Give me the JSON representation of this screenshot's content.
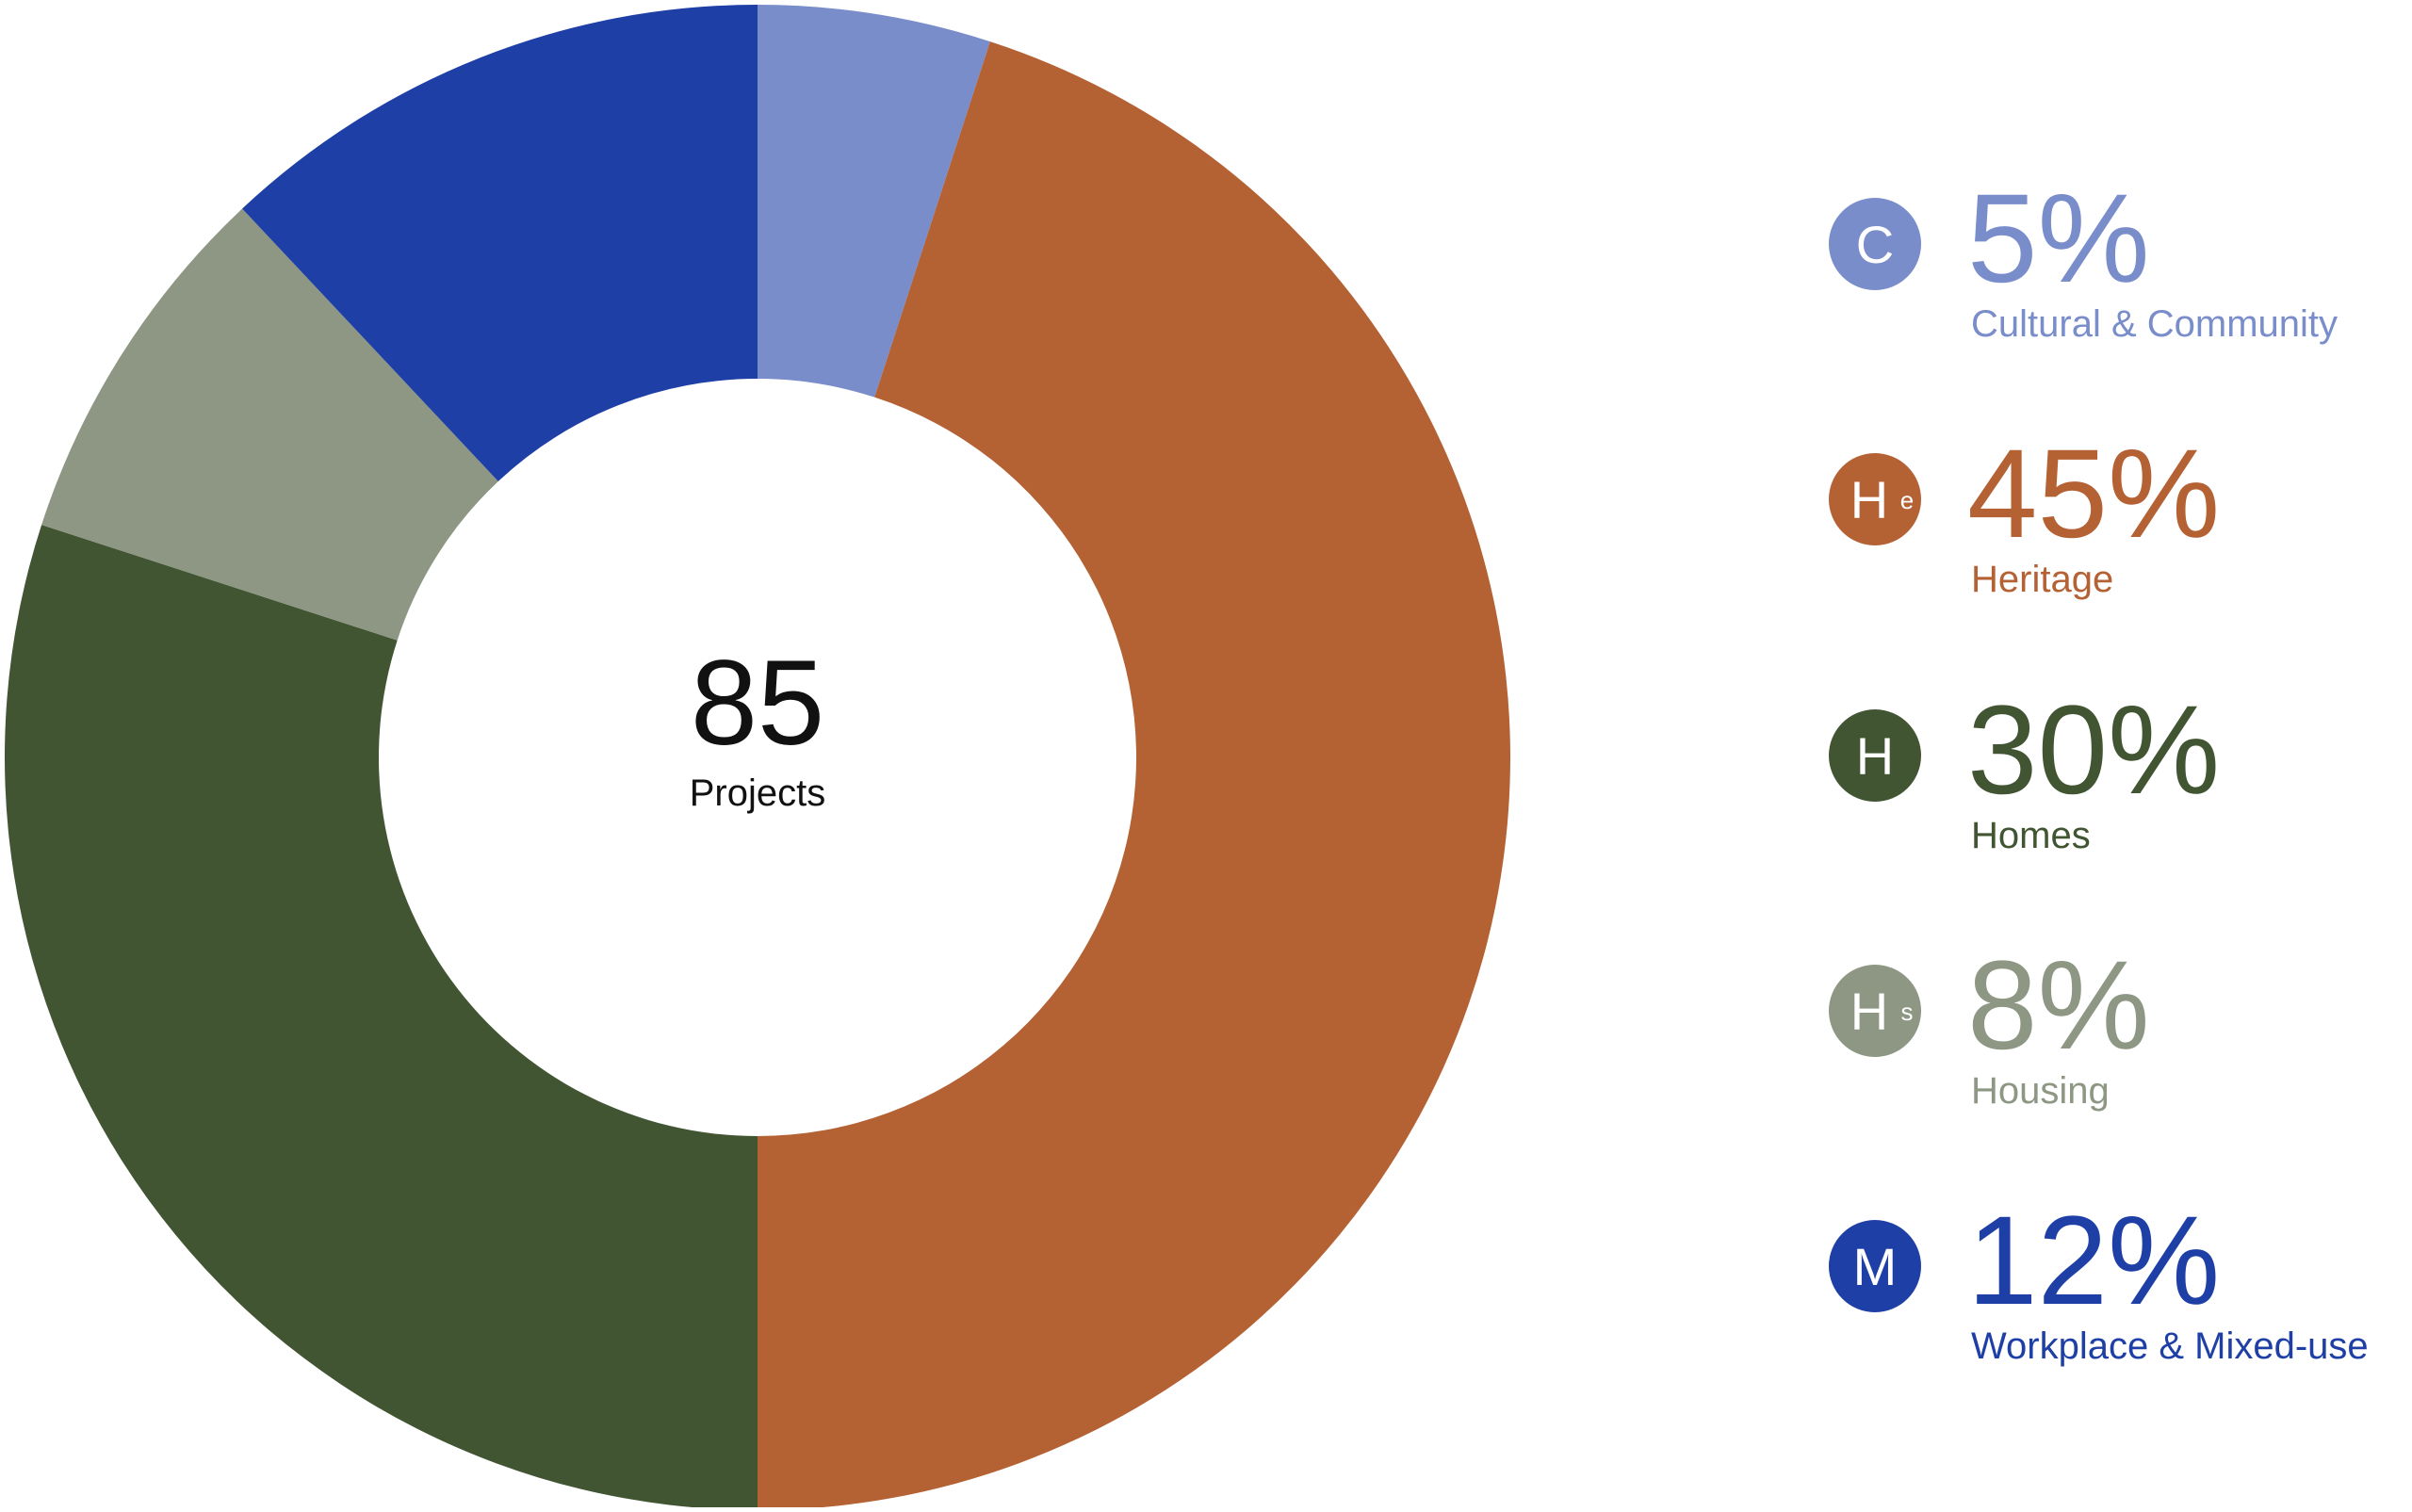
{
  "chart_data": {
    "type": "donut",
    "center_value": 85,
    "center_label": "Projects",
    "categories": [
      "Cultural & Community",
      "Heritage",
      "Homes",
      "Housing",
      "Workplace & Mixed-use"
    ],
    "values": [
      5,
      45,
      30,
      8,
      12
    ],
    "value_labels": [
      "5%",
      "45%",
      "30%",
      "8%",
      "12%"
    ],
    "colors": [
      "#7a8dcb",
      "#b46134",
      "#415533",
      "#8d9783",
      "#1e3fa6"
    ],
    "badges": [
      {
        "letter": "C"
      },
      {
        "letter": "H",
        "sub": "e"
      },
      {
        "letter": "H"
      },
      {
        "letter": "H",
        "sub": "s"
      },
      {
        "letter": "M"
      }
    ]
  }
}
